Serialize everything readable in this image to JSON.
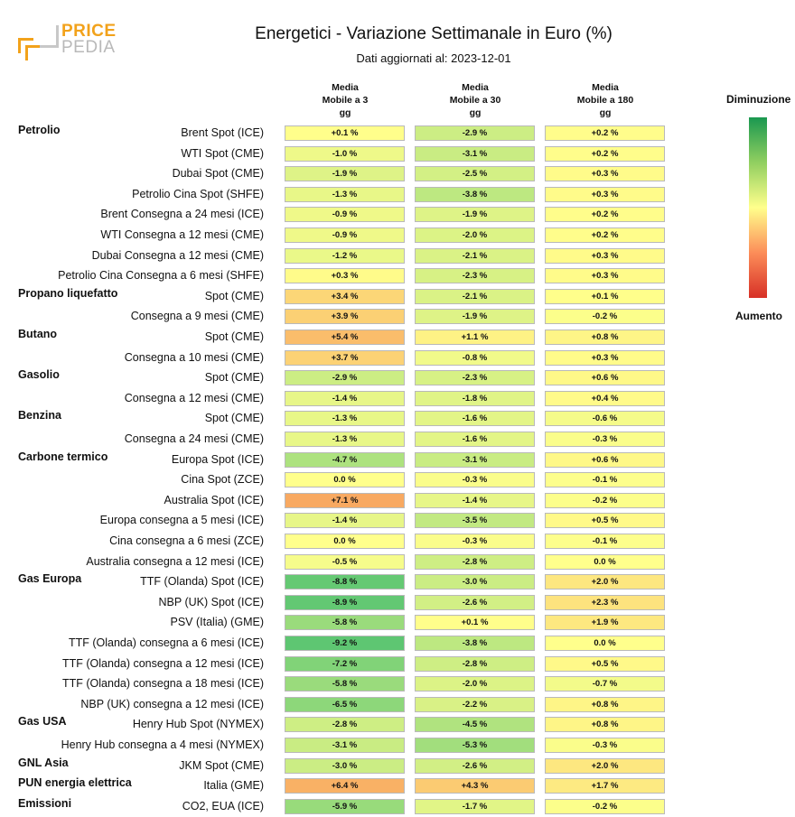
{
  "header": {
    "logo_top": "PRICE",
    "logo_bottom": "PEDIA",
    "title": "Energetici - Variazione Settimanale in Euro (%)",
    "subtitle": "Dati aggiornati al: 2023-12-01"
  },
  "columns": [
    {
      "line1": "Media",
      "line2": "Mobile a 3",
      "line3": "gg"
    },
    {
      "line1": "Media",
      "line2": "Mobile a 30",
      "line3": "gg"
    },
    {
      "line1": "Media",
      "line2": "Mobile a 180",
      "line3": "gg"
    }
  ],
  "legend": {
    "top": "Diminuzione",
    "bottom": "Aumento"
  },
  "chart_data": {
    "type": "heatmap",
    "title": "Energetici - Variazione Settimanale in Euro (%)",
    "subtitle": "Dati aggiornati al: 2023-12-01",
    "columns": [
      "Media Mobile a 3 gg",
      "Media Mobile a 30 gg",
      "Media Mobile a 180 gg"
    ],
    "rows": [
      {
        "group": "Petrolio",
        "label": "Brent Spot (ICE)",
        "values": [
          0.1,
          -2.9,
          0.2
        ]
      },
      {
        "group": "",
        "label": "WTI Spot (CME)",
        "values": [
          -1.0,
          -3.1,
          0.2
        ]
      },
      {
        "group": "",
        "label": "Dubai Spot (CME)",
        "values": [
          -1.9,
          -2.5,
          0.3
        ]
      },
      {
        "group": "",
        "label": "Petrolio Cina Spot (SHFE)",
        "values": [
          -1.3,
          -3.8,
          0.3
        ]
      },
      {
        "group": "",
        "label": "Brent Consegna a 24 mesi (ICE)",
        "values": [
          -0.9,
          -1.9,
          0.2
        ]
      },
      {
        "group": "",
        "label": "WTI Consegna a 12 mesi (CME)",
        "values": [
          -0.9,
          -2.0,
          0.2
        ]
      },
      {
        "group": "",
        "label": "Dubai Consegna a 12 mesi (CME)",
        "values": [
          -1.2,
          -2.1,
          0.3
        ]
      },
      {
        "group": "",
        "label": "Petrolio Cina Consegna a 6 mesi (SHFE)",
        "values": [
          0.3,
          -2.3,
          0.3
        ]
      },
      {
        "group": "Propano liquefatto",
        "label": "Spot (CME)",
        "values": [
          3.4,
          -2.1,
          0.1
        ]
      },
      {
        "group": "",
        "label": "Consegna a 9 mesi (CME)",
        "values": [
          3.9,
          -1.9,
          -0.2
        ]
      },
      {
        "group": "Butano",
        "label": "Spot (CME)",
        "values": [
          5.4,
          1.1,
          0.8
        ]
      },
      {
        "group": "",
        "label": "Consegna a 10 mesi (CME)",
        "values": [
          3.7,
          -0.8,
          0.3
        ]
      },
      {
        "group": "Gasolio",
        "label": "Spot (CME)",
        "values": [
          -2.9,
          -2.3,
          0.6
        ]
      },
      {
        "group": "",
        "label": "Consegna a 12 mesi (CME)",
        "values": [
          -1.4,
          -1.8,
          0.4
        ]
      },
      {
        "group": "Benzina",
        "label": "Spot (CME)",
        "values": [
          -1.3,
          -1.6,
          -0.6
        ]
      },
      {
        "group": "",
        "label": "Consegna a 24 mesi (CME)",
        "values": [
          -1.3,
          -1.6,
          -0.3
        ]
      },
      {
        "group": "Carbone termico",
        "label": "Europa Spot (ICE)",
        "values": [
          -4.7,
          -3.1,
          0.6
        ]
      },
      {
        "group": "",
        "label": "Cina Spot (ZCE)",
        "values": [
          0.0,
          -0.3,
          -0.1
        ]
      },
      {
        "group": "",
        "label": "Australia Spot (ICE)",
        "values": [
          7.1,
          -1.4,
          -0.2
        ]
      },
      {
        "group": "",
        "label": "Europa consegna a 5 mesi (ICE)",
        "values": [
          -1.4,
          -3.5,
          0.5
        ]
      },
      {
        "group": "",
        "label": "Cina consegna a 6 mesi (ZCE)",
        "values": [
          0.0,
          -0.3,
          -0.1
        ]
      },
      {
        "group": "",
        "label": "Australia consegna a 12 mesi (ICE)",
        "values": [
          -0.5,
          -2.8,
          0.0
        ]
      },
      {
        "group": "Gas Europa",
        "label": "TTF (Olanda) Spot (ICE)",
        "values": [
          -8.8,
          -3.0,
          2.0
        ]
      },
      {
        "group": "",
        "label": "NBP (UK) Spot (ICE)",
        "values": [
          -8.9,
          -2.6,
          2.3
        ]
      },
      {
        "group": "",
        "label": "PSV (Italia) (GME)",
        "values": [
          -5.8,
          0.1,
          1.9
        ]
      },
      {
        "group": "",
        "label": "TTF (Olanda) consegna a 6 mesi (ICE)",
        "values": [
          -9.2,
          -3.8,
          0.0
        ]
      },
      {
        "group": "",
        "label": "TTF (Olanda) consegna a 12 mesi (ICE)",
        "values": [
          -7.2,
          -2.8,
          0.5
        ]
      },
      {
        "group": "",
        "label": "TTF (Olanda) consegna a 18 mesi (ICE)",
        "values": [
          -5.8,
          -2.0,
          -0.7
        ]
      },
      {
        "group": "",
        "label": "NBP (UK) consegna a 12 mesi (ICE)",
        "values": [
          -6.5,
          -2.2,
          0.8
        ]
      },
      {
        "group": "Gas USA",
        "label": "Henry Hub Spot (NYMEX)",
        "values": [
          -2.8,
          -4.5,
          0.8
        ]
      },
      {
        "group": "",
        "label": "Henry Hub consegna a 4 mesi (NYMEX)",
        "values": [
          -3.1,
          -5.3,
          -0.3
        ]
      },
      {
        "group": "GNL Asia",
        "label": "JKM Spot (CME)",
        "values": [
          -3.0,
          -2.6,
          2.0
        ]
      },
      {
        "group": "PUN energia elettrica",
        "label": "Italia (GME)",
        "values": [
          6.4,
          4.3,
          1.7
        ]
      },
      {
        "group": "Emissioni",
        "label": "CO2, EUA (ICE)",
        "values": [
          -5.9,
          -1.7,
          -0.2
        ]
      }
    ],
    "color_scale": {
      "negative": "#1a9850",
      "neutral": "#ffff8c",
      "positive": "#d73027"
    },
    "legend_placement": "right"
  }
}
